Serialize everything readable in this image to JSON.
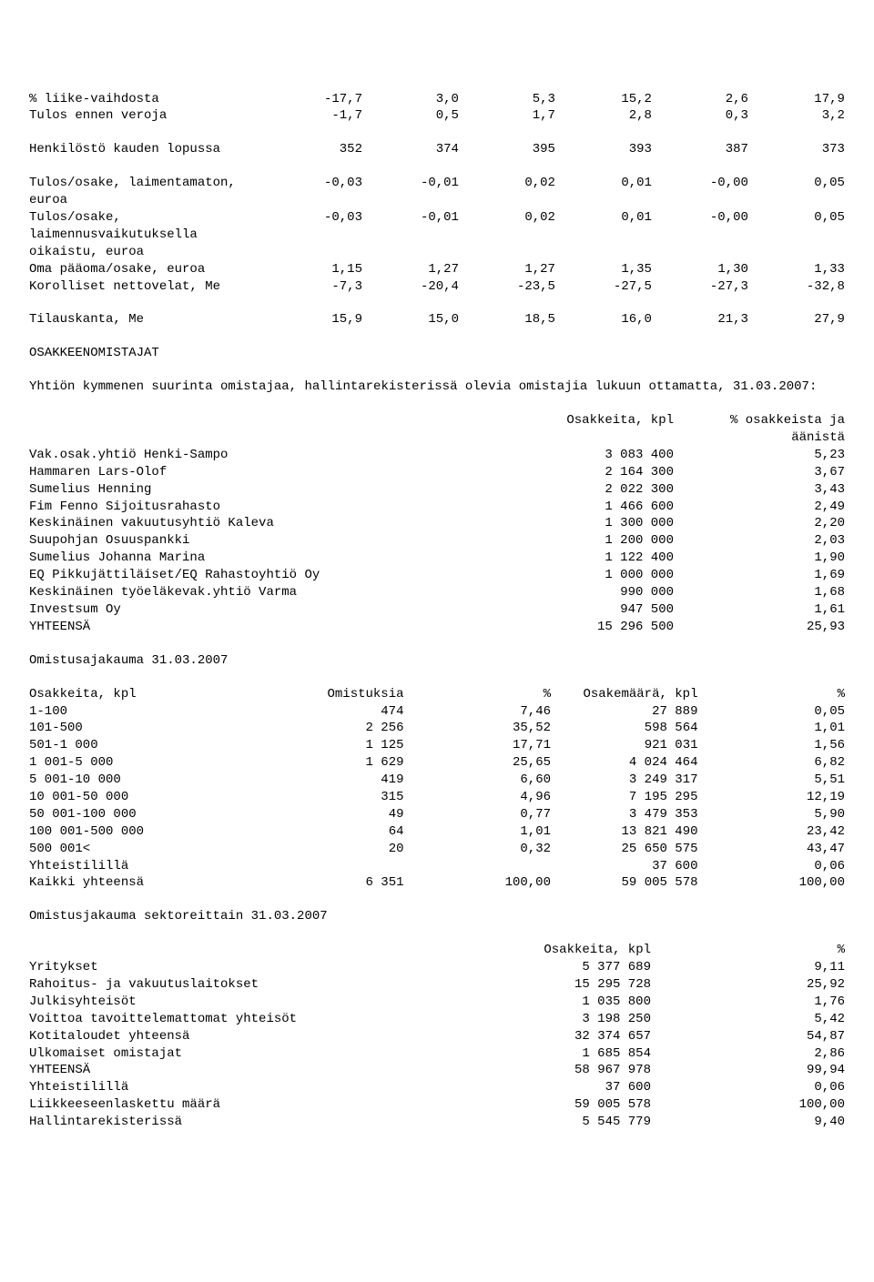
{
  "font": {
    "family": "Courier New",
    "size_pt": 11,
    "color": "#000000"
  },
  "background_color": "#ffffff",
  "top_table": {
    "col_count": 6,
    "rows": [
      {
        "label": "% liike-vaihdosta",
        "vals": [
          "-17,7",
          "3,0",
          "5,3",
          "15,2",
          "2,6",
          "17,9"
        ]
      },
      {
        "label": "Tulos ennen veroja",
        "vals": [
          "-1,7",
          "0,5",
          "1,7",
          "2,8",
          "0,3",
          "3,2"
        ]
      },
      {
        "label": "",
        "vals": [
          "",
          "",
          "",
          "",
          "",
          ""
        ]
      },
      {
        "label": "Henkilöstö kauden lopussa",
        "vals": [
          "352",
          "374",
          "395",
          "393",
          "387",
          "373"
        ]
      },
      {
        "label": "",
        "vals": [
          "",
          "",
          "",
          "",
          "",
          ""
        ]
      },
      {
        "label": "Tulos/osake, laimentamaton,",
        "vals": [
          "-0,03",
          "-0,01",
          "0,02",
          "0,01",
          "-0,00",
          "0,05"
        ]
      },
      {
        "label": "euroa",
        "vals": [
          "",
          "",
          "",
          "",
          "",
          ""
        ]
      },
      {
        "label": "Tulos/osake,",
        "vals": [
          "-0,03",
          "-0,01",
          "0,02",
          "0,01",
          "-0,00",
          "0,05"
        ]
      },
      {
        "label": "laimennusvaikutuksella",
        "vals": [
          "",
          "",
          "",
          "",
          "",
          ""
        ]
      },
      {
        "label": "oikaistu, euroa",
        "vals": [
          "",
          "",
          "",
          "",
          "",
          ""
        ]
      },
      {
        "label": "Oma pääoma/osake, euroa",
        "vals": [
          "1,15",
          "1,27",
          "1,27",
          "1,35",
          "1,30",
          "1,33"
        ]
      },
      {
        "label": "Korolliset nettovelat, Me",
        "vals": [
          "-7,3",
          "-20,4",
          "-23,5",
          "-27,5",
          "-27,3",
          "-32,8"
        ]
      },
      {
        "label": "",
        "vals": [
          "",
          "",
          "",
          "",
          "",
          ""
        ]
      },
      {
        "label": "Tilauskanta, Me",
        "vals": [
          "15,9",
          "15,0",
          "18,5",
          "16,0",
          "21,3",
          "27,9"
        ]
      }
    ]
  },
  "section_shareholders_title": "OSAKKEENOMISTAJAT",
  "section_shareholders_intro": "Yhtiön kymmenen suurinta omistajaa, hallintarekisterissä olevia omistajia lukuun ottamatta, 31.03.2007:",
  "holders_table": {
    "header": [
      "Osakkeita, kpl",
      "% osakkeista ja",
      "äänistä"
    ],
    "rows": [
      {
        "label": "Vak.osak.yhtiö Henki-Sampo",
        "shares": "3 083 400",
        "pct": "5,23"
      },
      {
        "label": "Hammaren Lars-Olof",
        "shares": "2 164 300",
        "pct": "3,67"
      },
      {
        "label": "Sumelius Henning",
        "shares": "2 022 300",
        "pct": "3,43"
      },
      {
        "label": "Fim Fenno Sijoitusrahasto",
        "shares": "1 466 600",
        "pct": "2,49"
      },
      {
        "label": "Keskinäinen vakuutusyhtiö Kaleva",
        "shares": "1 300 000",
        "pct": "2,20"
      },
      {
        "label": "Suupohjan Osuuspankki",
        "shares": "1 200 000",
        "pct": "2,03"
      },
      {
        "label": "Sumelius Johanna Marina",
        "shares": "1 122 400",
        "pct": "1,90"
      },
      {
        "label": "EQ Pikkujättiläiset/EQ Rahastoyhtiö Oy",
        "shares": "1 000 000",
        "pct": "1,69"
      },
      {
        "label": "Keskinäinen työeläkevak.yhtiö Varma",
        "shares": "990 000",
        "pct": "1,68"
      },
      {
        "label": "Investsum Oy",
        "shares": "947 500",
        "pct": "1,61"
      },
      {
        "label": "YHTEENSÄ",
        "shares": "15 296 500",
        "pct": "25,93"
      }
    ]
  },
  "dist_title": "Omistusajakauma 31.03.2007",
  "dist_table": {
    "header": [
      "Osakkeita, kpl",
      "Omistuksia",
      "%",
      "Osakemäärä, kpl",
      "%"
    ],
    "rows": [
      {
        "label": "1-100",
        "c": [
          "474",
          "7,46",
          "27 889",
          "0,05"
        ]
      },
      {
        "label": "101-500",
        "c": [
          "2 256",
          "35,52",
          "598 564",
          "1,01"
        ]
      },
      {
        "label": "501-1 000",
        "c": [
          "1 125",
          "17,71",
          "921 031",
          "1,56"
        ]
      },
      {
        "label": "1 001-5 000",
        "c": [
          "1 629",
          "25,65",
          "4 024 464",
          "6,82"
        ]
      },
      {
        "label": "5 001-10 000",
        "c": [
          "419",
          "6,60",
          "3 249 317",
          "5,51"
        ]
      },
      {
        "label": "10 001-50 000",
        "c": [
          "315",
          "4,96",
          "7 195 295",
          "12,19"
        ]
      },
      {
        "label": "50 001-100 000",
        "c": [
          "49",
          "0,77",
          "3 479 353",
          "5,90"
        ]
      },
      {
        "label": "100 001-500 000",
        "c": [
          "64",
          "1,01",
          "13 821 490",
          "23,42"
        ]
      },
      {
        "label": "500 001<",
        "c": [
          "20",
          "0,32",
          "25 650 575",
          "43,47"
        ]
      },
      {
        "label": "Yhteistilillä",
        "c": [
          "",
          "",
          "37 600",
          "0,06"
        ]
      },
      {
        "label": "Kaikki yhteensä",
        "c": [
          "6 351",
          "100,00",
          "59 005 578",
          "100,00"
        ]
      }
    ]
  },
  "sector_title": "Omistusjakauma sektoreittain 31.03.2007",
  "sector_table": {
    "header": [
      "Osakkeita, kpl",
      "%"
    ],
    "rows": [
      {
        "label": "Yritykset",
        "shares": "5 377 689",
        "pct": "9,11"
      },
      {
        "label": "Rahoitus- ja vakuutuslaitokset",
        "shares": "15 295 728",
        "pct": "25,92"
      },
      {
        "label": "Julkisyhteisöt",
        "shares": "1 035 800",
        "pct": "1,76"
      },
      {
        "label": "Voittoa tavoittelemattomat yhteisöt",
        "shares": "3 198 250",
        "pct": "5,42"
      },
      {
        "label": "Kotitaloudet yhteensä",
        "shares": "32 374 657",
        "pct": "54,87"
      },
      {
        "label": "Ulkomaiset omistajat",
        "shares": "1 685 854",
        "pct": "2,86"
      },
      {
        "label": "YHTEENSÄ",
        "shares": "58 967 978",
        "pct": "99,94"
      },
      {
        "label": "Yhteistilillä",
        "shares": "37 600",
        "pct": "0,06"
      },
      {
        "label": "Liikkeeseenlaskettu määrä",
        "shares": "59 005 578",
        "pct": "100,00"
      },
      {
        "label": "Hallintarekisterissä",
        "shares": "5 545 779",
        "pct": "9,40"
      }
    ]
  }
}
